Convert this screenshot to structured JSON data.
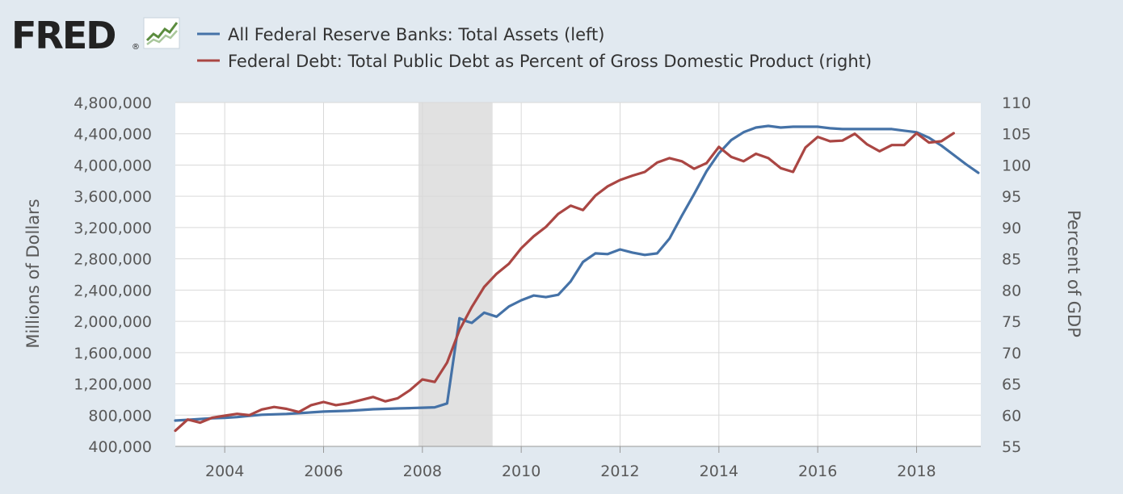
{
  "logo": {
    "text": "FRED",
    "mark": "®"
  },
  "colors": {
    "background": "#e1e9f0",
    "plot_bg": "#ffffff",
    "grid": "#d9d9d9",
    "recession": "#e1e1e1",
    "series_left": "#4572a7",
    "series_right": "#aa4643"
  },
  "chart_data": {
    "type": "line",
    "x_axis": {
      "ticks": [
        "2004",
        "2006",
        "2008",
        "2010",
        "2012",
        "2014",
        "2016",
        "2018"
      ],
      "range": [
        2003.0,
        2019.3
      ]
    },
    "y_left": {
      "label": "Millions of Dollars",
      "range": [
        400000,
        4800000
      ],
      "ticks": [
        400000,
        800000,
        1200000,
        1600000,
        2000000,
        2400000,
        2800000,
        3200000,
        3600000,
        4000000,
        4400000,
        4800000
      ],
      "tick_labels": [
        "400,000",
        "800,000",
        "1,200,000",
        "1,600,000",
        "2,000,000",
        "2,400,000",
        "2,800,000",
        "3,200,000",
        "3,600,000",
        "4,000,000",
        "4,400,000",
        "4,800,000"
      ]
    },
    "y_right": {
      "label": "Percent of GDP",
      "range": [
        55,
        110
      ],
      "ticks": [
        55,
        60,
        65,
        70,
        75,
        80,
        85,
        90,
        95,
        100,
        105,
        110
      ],
      "tick_labels": [
        "55",
        "60",
        "65",
        "70",
        "75",
        "80",
        "85",
        "90",
        "95",
        "100",
        "105",
        "110"
      ]
    },
    "recession": [
      2007.92,
      2009.42
    ],
    "grid": true,
    "legend": "top-left",
    "series": [
      {
        "name": "All Federal Reserve Banks: Total Assets (left)",
        "axis": "left",
        "color": "#4572a7",
        "x": [
          2003.0,
          2003.25,
          2003.5,
          2003.75,
          2004.0,
          2004.25,
          2004.5,
          2004.75,
          2005.0,
          2005.25,
          2005.5,
          2005.75,
          2006.0,
          2006.25,
          2006.5,
          2006.75,
          2007.0,
          2007.25,
          2007.5,
          2007.75,
          2008.0,
          2008.25,
          2008.5,
          2008.75,
          2008.9,
          2009.0,
          2009.25,
          2009.5,
          2009.75,
          2010.0,
          2010.25,
          2010.5,
          2010.75,
          2011.0,
          2011.25,
          2011.5,
          2011.75,
          2012.0,
          2012.25,
          2012.5,
          2012.75,
          2013.0,
          2013.25,
          2013.5,
          2013.75,
          2014.0,
          2014.25,
          2014.5,
          2014.75,
          2015.0,
          2015.25,
          2015.5,
          2015.75,
          2016.0,
          2016.25,
          2016.5,
          2016.75,
          2017.0,
          2017.25,
          2017.5,
          2017.75,
          2018.0,
          2018.25,
          2018.5,
          2018.75,
          2019.0,
          2019.25
        ],
        "values": [
          730000,
          740000,
          750000,
          760000,
          765000,
          775000,
          790000,
          805000,
          810000,
          815000,
          825000,
          835000,
          845000,
          850000,
          855000,
          865000,
          875000,
          880000,
          885000,
          890000,
          895000,
          900000,
          950000,
          2040000,
          2000000,
          1980000,
          2110000,
          2060000,
          2190000,
          2270000,
          2330000,
          2310000,
          2340000,
          2510000,
          2760000,
          2870000,
          2860000,
          2920000,
          2880000,
          2850000,
          2870000,
          3060000,
          3350000,
          3630000,
          3920000,
          4150000,
          4320000,
          4420000,
          4480000,
          4500000,
          4480000,
          4490000,
          4490000,
          4490000,
          4470000,
          4460000,
          4460000,
          4460000,
          4460000,
          4460000,
          4440000,
          4420000,
          4350000,
          4250000,
          4130000,
          4010000,
          3900000
        ]
      },
      {
        "name": "Federal Debt: Total Public Debt as Percent of Gross Domestic Product (right)",
        "axis": "right",
        "color": "#aa4643",
        "x": [
          2003.0,
          2003.25,
          2003.5,
          2003.75,
          2004.0,
          2004.25,
          2004.5,
          2004.75,
          2005.0,
          2005.25,
          2005.5,
          2005.75,
          2006.0,
          2006.25,
          2006.5,
          2006.75,
          2007.0,
          2007.25,
          2007.5,
          2007.75,
          2008.0,
          2008.25,
          2008.5,
          2008.75,
          2009.0,
          2009.25,
          2009.5,
          2009.75,
          2010.0,
          2010.25,
          2010.5,
          2010.75,
          2011.0,
          2011.25,
          2011.5,
          2011.75,
          2012.0,
          2012.25,
          2012.5,
          2012.75,
          2013.0,
          2013.25,
          2013.5,
          2013.75,
          2014.0,
          2014.25,
          2014.5,
          2014.75,
          2015.0,
          2015.25,
          2015.5,
          2015.75,
          2016.0,
          2016.25,
          2016.5,
          2016.75,
          2017.0,
          2017.25,
          2017.5,
          2017.75,
          2018.0,
          2018.25,
          2018.5,
          2018.75
        ],
        "values": [
          57.5,
          59.3,
          58.8,
          59.6,
          59.9,
          60.2,
          60.0,
          60.9,
          61.3,
          61.0,
          60.5,
          61.6,
          62.1,
          61.6,
          61.9,
          62.4,
          62.9,
          62.2,
          62.7,
          64.0,
          65.7,
          65.3,
          68.4,
          73.6,
          77.3,
          80.5,
          82.6,
          84.2,
          86.7,
          88.6,
          90.1,
          92.2,
          93.5,
          92.8,
          95.1,
          96.6,
          97.6,
          98.3,
          98.9,
          100.4,
          101.1,
          100.6,
          99.4,
          100.3,
          102.9,
          101.3,
          100.6,
          101.8,
          101.1,
          99.5,
          98.9,
          102.8,
          104.5,
          103.8,
          103.9,
          105.0,
          103.3,
          102.2,
          103.2,
          103.2,
          105.1,
          103.6,
          103.8,
          105.1
        ]
      }
    ]
  }
}
